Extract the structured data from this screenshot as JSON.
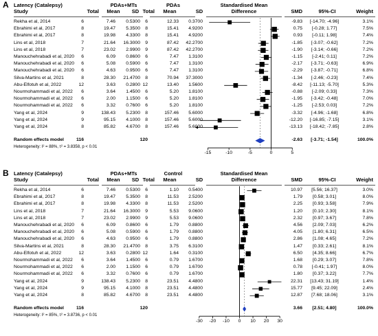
{
  "chart_data": [
    {
      "type": "forest",
      "panel_label": "A",
      "title": "Latency (Catalepsy)",
      "columns": {
        "study": "Study",
        "group1": "PDAs+MTs",
        "group2": "PDAs",
        "total": "Total",
        "mean": "Mean",
        "sd": "SD",
        "effect_header_1": "Standardised Mean",
        "effect_header_2": "Difference",
        "smd": "SMD",
        "ci": "95%-CI",
        "weight": "Weight"
      },
      "studies": [
        {
          "study": "Rekha et al, 2014",
          "n1": "6",
          "m1": "7.46",
          "sd1": "0.5300",
          "n2": "6",
          "m2": "12.33",
          "sd2": "0.3700",
          "smd": -9.83,
          "lo": -14.7,
          "hi": -4.96,
          "smd_text": "-9.83",
          "ci_text": "[-14.70; -4.96]",
          "weight": "3.1%"
        },
        {
          "study": "Ebrahimi et al, 2017",
          "n1": "8",
          "m1": "19.47",
          "sd1": "5.3500",
          "n2": "8",
          "m2": "15.41",
          "sd2": "4.9200",
          "smd": 0.75,
          "lo": -0.28,
          "hi": 1.77,
          "smd_text": "0.75",
          "ci_text": "[-0.28; 1.77]",
          "weight": "7.5%"
        },
        {
          "study": "Ebrahimi et al, 2017",
          "n1": "8",
          "m1": "19.98",
          "sd1": "4.3300",
          "n2": "8",
          "m2": "15.41",
          "sd2": "4.9200",
          "smd": 0.93,
          "lo": -0.11,
          "hi": 1.98,
          "smd_text": "0.93",
          "ci_text": "[-0.11; 1.98]",
          "weight": "7.4%"
        },
        {
          "study": "Lins et al, 2018",
          "n1": "7",
          "m1": "21.64",
          "sd1": "16.3000",
          "n2": "9",
          "m2": "87.42",
          "sd2": "42.2700",
          "smd": -1.85,
          "lo": -3.07,
          "hi": -0.62,
          "smd_text": "-1.85",
          "ci_text": "[-3.07; -0.62]",
          "weight": "7.2%"
        },
        {
          "study": "Lins et al, 2018",
          "n1": "7",
          "m1": "23.02",
          "sd1": "2.9900",
          "n2": "9",
          "m2": "87.42",
          "sd2": "42.2700",
          "smd": -1.9,
          "lo": -3.14,
          "hi": -0.66,
          "smd_text": "-1.90",
          "ci_text": "[-3.14; -0.66]",
          "weight": "7.2%"
        },
        {
          "study": "Manouchehrabadi et al, 2020",
          "n1": "6",
          "m1": "6.09",
          "sd1": "0.8600",
          "n2": "6",
          "m2": "7.47",
          "sd2": "1.3100",
          "smd": -1.15,
          "lo": -2.41,
          "hi": 0.11,
          "smd_text": "-1.15",
          "ci_text": "[-2.41; 0.11]",
          "weight": "7.2%"
        },
        {
          "study": "Manouchehrabadi et al, 2020",
          "n1": "6",
          "m1": "5.08",
          "sd1": "0.5900",
          "n2": "6",
          "m2": "7.47",
          "sd2": "1.3100",
          "smd": -2.17,
          "lo": -3.71,
          "hi": -0.63,
          "smd_text": "-2.17",
          "ci_text": "[-3.71; -0.63]",
          "weight": "6.9%"
        },
        {
          "study": "Manouchehrabadi et al, 2020",
          "n1": "6",
          "m1": "4.63",
          "sd1": "0.9500",
          "n2": "6",
          "m2": "7.47",
          "sd2": "1.3100",
          "smd": -2.29,
          "lo": -3.87,
          "hi": -0.71,
          "smd_text": "-2.29",
          "ci_text": "[-3.87; -0.71]",
          "weight": "6.8%"
        },
        {
          "study": "Silva-Martins et al, 2021",
          "n1": "8",
          "m1": "28.30",
          "sd1": "21.4700",
          "n2": "8",
          "m2": "70.94",
          "sd2": "37.3000",
          "smd": -1.34,
          "lo": -2.46,
          "hi": -0.23,
          "smd_text": "-1.34",
          "ci_text": "[-2.46; -0.23]",
          "weight": "7.4%"
        },
        {
          "study": "Abu-Elfotuh et al, 2022",
          "n1": "12",
          "m1": "3.63",
          "sd1": "0.2800",
          "n2": "12",
          "m2": "13.40",
          "sd2": "1.5600",
          "smd": -8.42,
          "lo": -11.13,
          "hi": -5.7,
          "smd_text": "-8.42",
          "ci_text": "[-11.13; -5.70]",
          "weight": "5.3%"
        },
        {
          "study": "Nourmohammadi et al, 2022",
          "n1": "6",
          "m1": "3.64",
          "sd1": "1.4500",
          "n2": "6",
          "m2": "5.20",
          "sd2": "1.8100",
          "smd": -0.88,
          "lo": -2.09,
          "hi": 0.33,
          "smd_text": "-0.88",
          "ci_text": "[-2.09; 0.33]",
          "weight": "7.3%"
        },
        {
          "study": "Nourmohammadi et al, 2022",
          "n1": "6",
          "m1": "2.00",
          "sd1": "1.1500",
          "n2": "6",
          "m2": "5.20",
          "sd2": "1.8100",
          "smd": -1.95,
          "lo": -3.42,
          "hi": -0.48,
          "smd_text": "-1.95",
          "ci_text": "[-3.42; -0.48]",
          "weight": "7.0%"
        },
        {
          "study": "Nourmohammadi et al, 2022",
          "n1": "6",
          "m1": "3.32",
          "sd1": "0.7600",
          "n2": "6",
          "m2": "5.20",
          "sd2": "1.8100",
          "smd": -1.25,
          "lo": -2.53,
          "hi": 0.03,
          "smd_text": "-1.25",
          "ci_text": "[-2.53; 0.03]",
          "weight": "7.2%"
        },
        {
          "study": "Yang et al, 2024",
          "n1": "9",
          "m1": "138.43",
          "sd1": "5.2300",
          "n2": "8",
          "m2": "157.46",
          "sd2": "5.6000",
          "smd": -3.32,
          "lo": -4.96,
          "hi": -1.68,
          "smd_text": "-3.32",
          "ci_text": "[-4.96; -1.68]",
          "weight": "6.8%"
        },
        {
          "study": "Yang et al, 2024",
          "n1": "9",
          "m1": "95.15",
          "sd1": "4.1000",
          "n2": "8",
          "m2": "157.46",
          "sd2": "5.6000",
          "smd": -12.2,
          "lo": -16.85,
          "hi": -7.15,
          "smd_text": "-12.20",
          "ci_text": "[-16.85; -7.15]",
          "weight": "3.1%"
        },
        {
          "study": "Yang et al, 2024",
          "n1": "8",
          "m1": "85.82",
          "sd1": "4.6700",
          "n2": "8",
          "m2": "157.46",
          "sd2": "5.6000",
          "smd": -13.13,
          "lo": -18.42,
          "hi": -7.85,
          "smd_text": "-13.13",
          "ci_text": "[-18.42; -7.85]",
          "weight": "2.8%"
        }
      ],
      "pooled": {
        "label": "Random effects model",
        "n1": "116",
        "n2": "120",
        "smd": -2.63,
        "lo": -3.71,
        "hi": -1.54,
        "smd_text": "-2.63",
        "ci_text": "[-3.71; -1.54]",
        "weight": "100.0%"
      },
      "heterogeneity": "Heterogeneity: I² = 88%, τ² = 3.8358, p < 0.01",
      "xlim": [
        -18,
        3
      ],
      "xticks": [
        -15,
        -10,
        -5,
        0,
        5
      ],
      "xtick_labels": [
        "-15",
        "-10",
        "-5",
        "0",
        "5"
      ]
    },
    {
      "type": "forest",
      "panel_label": "B",
      "title": "Latency (Catalepsy)",
      "columns": {
        "study": "Study",
        "group1": "PDAs+MTs",
        "group2": "Control",
        "total": "Total",
        "mean": "Mean",
        "sd": "SD",
        "effect_header_1": "Standardised Mean",
        "effect_header_2": "Difference",
        "smd": "SMD",
        "ci": "95%-CI",
        "weight": "Weight"
      },
      "studies": [
        {
          "study": "Rekha et al, 2014",
          "n1": "6",
          "m1": "7.46",
          "sd1": "0.5300",
          "n2": "6",
          "m2": "1.10",
          "sd2": "0.5400",
          "smd": 10.97,
          "lo": 5.56,
          "hi": 16.37,
          "smd_text": "10.97",
          "ci_text": "[5.56; 16.37]",
          "weight": "3.0%"
        },
        {
          "study": "Ebrahimi et al, 2017",
          "n1": "8",
          "m1": "19.47",
          "sd1": "5.3500",
          "n2": "8",
          "m2": "11.53",
          "sd2": "2.5200",
          "smd": 1.79,
          "lo": 0.58,
          "hi": 3.01,
          "smd_text": "1.79",
          "ci_text": "[0.58; 3.01]",
          "weight": "8.0%"
        },
        {
          "study": "Ebrahimi et al, 2017",
          "n1": "8",
          "m1": "19.98",
          "sd1": "4.3300",
          "n2": "8",
          "m2": "11.53",
          "sd2": "2.5200",
          "smd": 2.25,
          "lo": 0.93,
          "hi": 3.58,
          "smd_text": "2.25",
          "ci_text": "[0.93; 3.58]",
          "weight": "7.9%"
        },
        {
          "study": "Lins et al, 2018",
          "n1": "7",
          "m1": "21.64",
          "sd1": "16.3000",
          "n2": "9",
          "m2": "5.53",
          "sd2": "9.0600",
          "smd": 1.2,
          "lo": 0.1,
          "hi": 2.3,
          "smd_text": "1.20",
          "ci_text": "[0.10; 2.30]",
          "weight": "8.1%"
        },
        {
          "study": "Lins et al, 2018",
          "n1": "7",
          "m1": "23.02",
          "sd1": "2.9900",
          "n2": "9",
          "m2": "5.53",
          "sd2": "9.0600",
          "smd": 2.32,
          "lo": 0.97,
          "hi": 3.67,
          "smd_text": "2.32",
          "ci_text": "[0.97; 3.67]",
          "weight": "7.8%"
        },
        {
          "study": "Manouchehrabadi et al, 2020",
          "n1": "6",
          "m1": "6.09",
          "sd1": "0.8600",
          "n2": "6",
          "m2": "1.79",
          "sd2": "0.8800",
          "smd": 4.56,
          "lo": 2.09,
          "hi": 7.03,
          "smd_text": "4.56",
          "ci_text": "[2.09; 7.03]",
          "weight": "6.2%"
        },
        {
          "study": "Manouchehrabadi et al, 2020",
          "n1": "6",
          "m1": "5.08",
          "sd1": "0.5900",
          "n2": "6",
          "m2": "1.79",
          "sd2": "0.8800",
          "smd": 4.05,
          "lo": 1.8,
          "hi": 6.31,
          "smd_text": "4.05",
          "ci_text": "[1.80; 6.31]",
          "weight": "6.5%"
        },
        {
          "study": "Manouchehrabadi et al, 2020",
          "n1": "6",
          "m1": "4.63",
          "sd1": "0.9500",
          "n2": "6",
          "m2": "1.79",
          "sd2": "0.8800",
          "smd": 2.86,
          "lo": 1.08,
          "hi": 4.65,
          "smd_text": "2.86",
          "ci_text": "[1.08; 4.65]",
          "weight": "7.2%"
        },
        {
          "study": "Silva-Martins et al, 2021",
          "n1": "8",
          "m1": "28.30",
          "sd1": "21.4700",
          "n2": "8",
          "m2": "3.75",
          "sd2": "6.3100",
          "smd": 1.47,
          "lo": 0.33,
          "hi": 2.61,
          "smd_text": "1.47",
          "ci_text": "[0.33; 2.61]",
          "weight": "8.1%"
        },
        {
          "study": "Abu-Elfotuh et al, 2022",
          "n1": "12",
          "m1": "3.63",
          "sd1": "0.2800",
          "n2": "12",
          "m2": "1.64",
          "sd2": "0.3100",
          "smd": 6.5,
          "lo": 4.35,
          "hi": 8.66,
          "smd_text": "6.50",
          "ci_text": "[4.35; 8.66]",
          "weight": "6.7%"
        },
        {
          "study": "Nourmohammadi et al, 2022",
          "n1": "6",
          "m1": "3.64",
          "sd1": "1.4500",
          "n2": "6",
          "m2": "0.79",
          "sd2": "1.6700",
          "smd": 1.68,
          "lo": 0.29,
          "hi": 3.07,
          "smd_text": "1.68",
          "ci_text": "[0.29; 3.07]",
          "weight": "7.8%"
        },
        {
          "study": "Nourmohammadi et al, 2022",
          "n1": "6",
          "m1": "2.00",
          "sd1": "1.1500",
          "n2": "6",
          "m2": "0.79",
          "sd2": "1.6700",
          "smd": 0.78,
          "lo": -0.41,
          "hi": 1.97,
          "smd_text": "0.78",
          "ci_text": "[-0.41; 1.97]",
          "weight": "8.0%"
        },
        {
          "study": "Nourmohammadi et al, 2022",
          "n1": "6",
          "m1": "3.32",
          "sd1": "0.7600",
          "n2": "6",
          "m2": "0.79",
          "sd2": "1.6700",
          "smd": 1.8,
          "lo": 0.37,
          "hi": 3.22,
          "smd_text": "1.80",
          "ci_text": "[0.37; 3.22]",
          "weight": "7.7%"
        },
        {
          "study": "Yang et al, 2024",
          "n1": "9",
          "m1": "138.43",
          "sd1": "5.2300",
          "n2": "8",
          "m2": "23.51",
          "sd2": "4.4800",
          "smd": 22.31,
          "lo": 13.43,
          "hi": 31.19,
          "smd_text": "22.31",
          "ci_text": "[13.43; 31.19]",
          "weight": "1.4%"
        },
        {
          "study": "Yang et al, 2024",
          "n1": "9",
          "m1": "95.15",
          "sd1": "4.1000",
          "n2": "8",
          "m2": "23.51",
          "sd2": "4.4800",
          "smd": 15.77,
          "lo": 9.45,
          "hi": 22.09,
          "smd_text": "15.77",
          "ci_text": "[9.45; 22.09]",
          "weight": "2.4%"
        },
        {
          "study": "Yang et al, 2024",
          "n1": "8",
          "m1": "85.82",
          "sd1": "4.6700",
          "n2": "8",
          "m2": "23.51",
          "sd2": "4.4800",
          "smd": 12.87,
          "lo": 7.68,
          "hi": 18.06,
          "smd_text": "12.87",
          "ci_text": "[7.68; 18.06]",
          "weight": "3.1%"
        }
      ],
      "pooled": {
        "label": "Random effects model",
        "n1": "116",
        "n2": "120",
        "smd": 3.66,
        "lo": 2.51,
        "hi": 4.8,
        "smd_text": "3.66",
        "ci_text": "[2.51; 4.80]",
        "weight": "100.0%"
      },
      "heterogeneity": "Heterogeneity: I² = 85%, τ² = 3.8736, p < 0.01",
      "xlim": [
        -33,
        33
      ],
      "xticks": [
        -30,
        -20,
        -10,
        0,
        10,
        20,
        30
      ],
      "xtick_labels": [
        "-30",
        "-20",
        "-10",
        "0",
        "10",
        "20",
        "30"
      ]
    }
  ],
  "colors": {
    "marker": "#000000",
    "diamond": "#1f3fbf",
    "line": "#000000",
    "rule": "#555555"
  }
}
